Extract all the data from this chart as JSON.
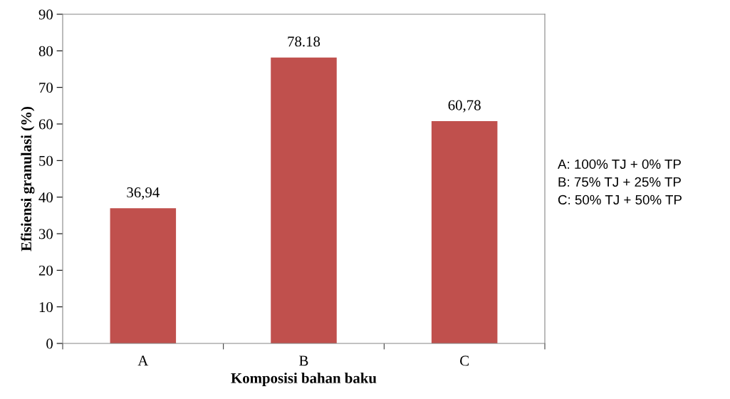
{
  "chart_data": {
    "type": "bar",
    "xlabel": "Komposisi bahan baku",
    "ylabel": "Efisiensi granulasi (%)",
    "categories": [
      "A",
      "B",
      "C"
    ],
    "values": [
      36.94,
      78.18,
      60.78
    ],
    "value_labels": [
      "36,94",
      "78.18",
      "60,78"
    ],
    "color": "#c0504d",
    "ylim": [
      0,
      90
    ],
    "yticks": [
      0,
      10,
      20,
      30,
      40,
      50,
      60,
      70,
      80,
      90
    ],
    "annotations": [
      "A: 100% TJ + 0% TP",
      "B: 75% TJ + 25% TP",
      "C: 50% TJ + 50% TP"
    ]
  }
}
